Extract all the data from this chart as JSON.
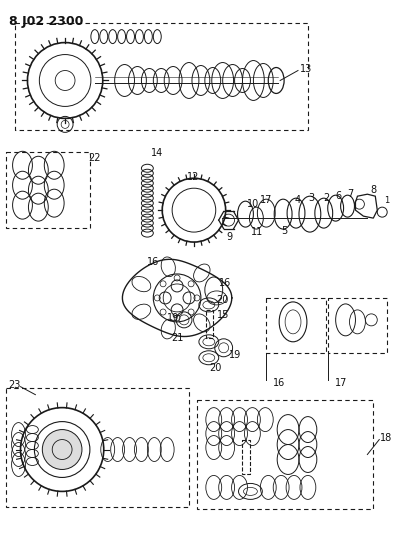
{
  "title": "8 J02 2300",
  "bg_color": "#ffffff",
  "line_color": "#1a1a1a",
  "text_color": "#111111",
  "fig_width": 3.96,
  "fig_height": 5.33,
  "dpi": 100
}
